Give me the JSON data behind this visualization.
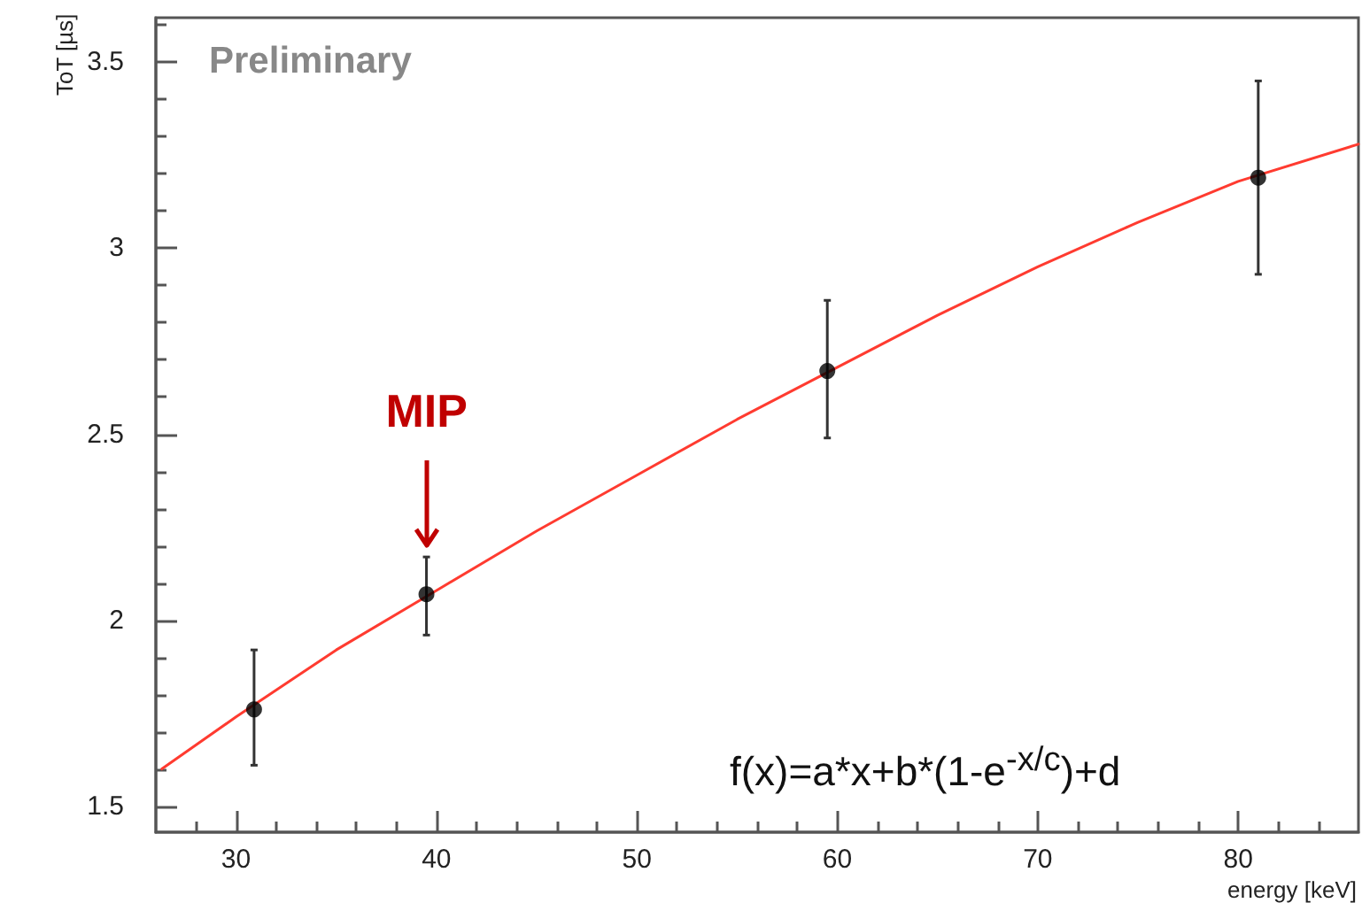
{
  "chart_data": {
    "type": "scatter",
    "xlabel": "energy [keV]",
    "ylabel": "ToT [µs]",
    "annotations": [
      "Preliminary",
      {
        "text": "MIP",
        "x": 39.5,
        "y": 2.17
      },
      "f(x)=a*x+b*(1-e$^{-x/c}$)+d"
    ],
    "xlim": [
      26,
      86
    ],
    "xticks": [
      30,
      40,
      50,
      60,
      70,
      80
    ],
    "ylim": [
      1.43,
      3.62
    ],
    "yticks": [
      1.5,
      2,
      2.5,
      3,
      3.5
    ],
    "grid": false,
    "series": [
      {
        "marker": "circle",
        "color": "#000000",
        "x": [
          30.9,
          39.5,
          59.5,
          81.0
        ],
        "values": [
          1.76,
          2.07,
          2.67,
          3.19
        ],
        "errors": [
          [
            1.61,
            1.92
          ],
          [
            1.96,
            2.17
          ],
          [
            2.49,
            2.86
          ],
          [
            2.93,
            3.45
          ]
        ]
      },
      {
        "type": "line",
        "marker": "none",
        "color": "#ff3b30",
        "x": [
          26.3,
          30,
          35,
          40,
          45,
          50,
          55,
          60,
          65,
          70,
          75,
          80,
          86
        ],
        "values": [
          1.6,
          1.74,
          1.92,
          2.08,
          2.24,
          2.39,
          2.54,
          2.68,
          2.82,
          2.95,
          3.07,
          3.18,
          3.28
        ]
      }
    ]
  }
}
